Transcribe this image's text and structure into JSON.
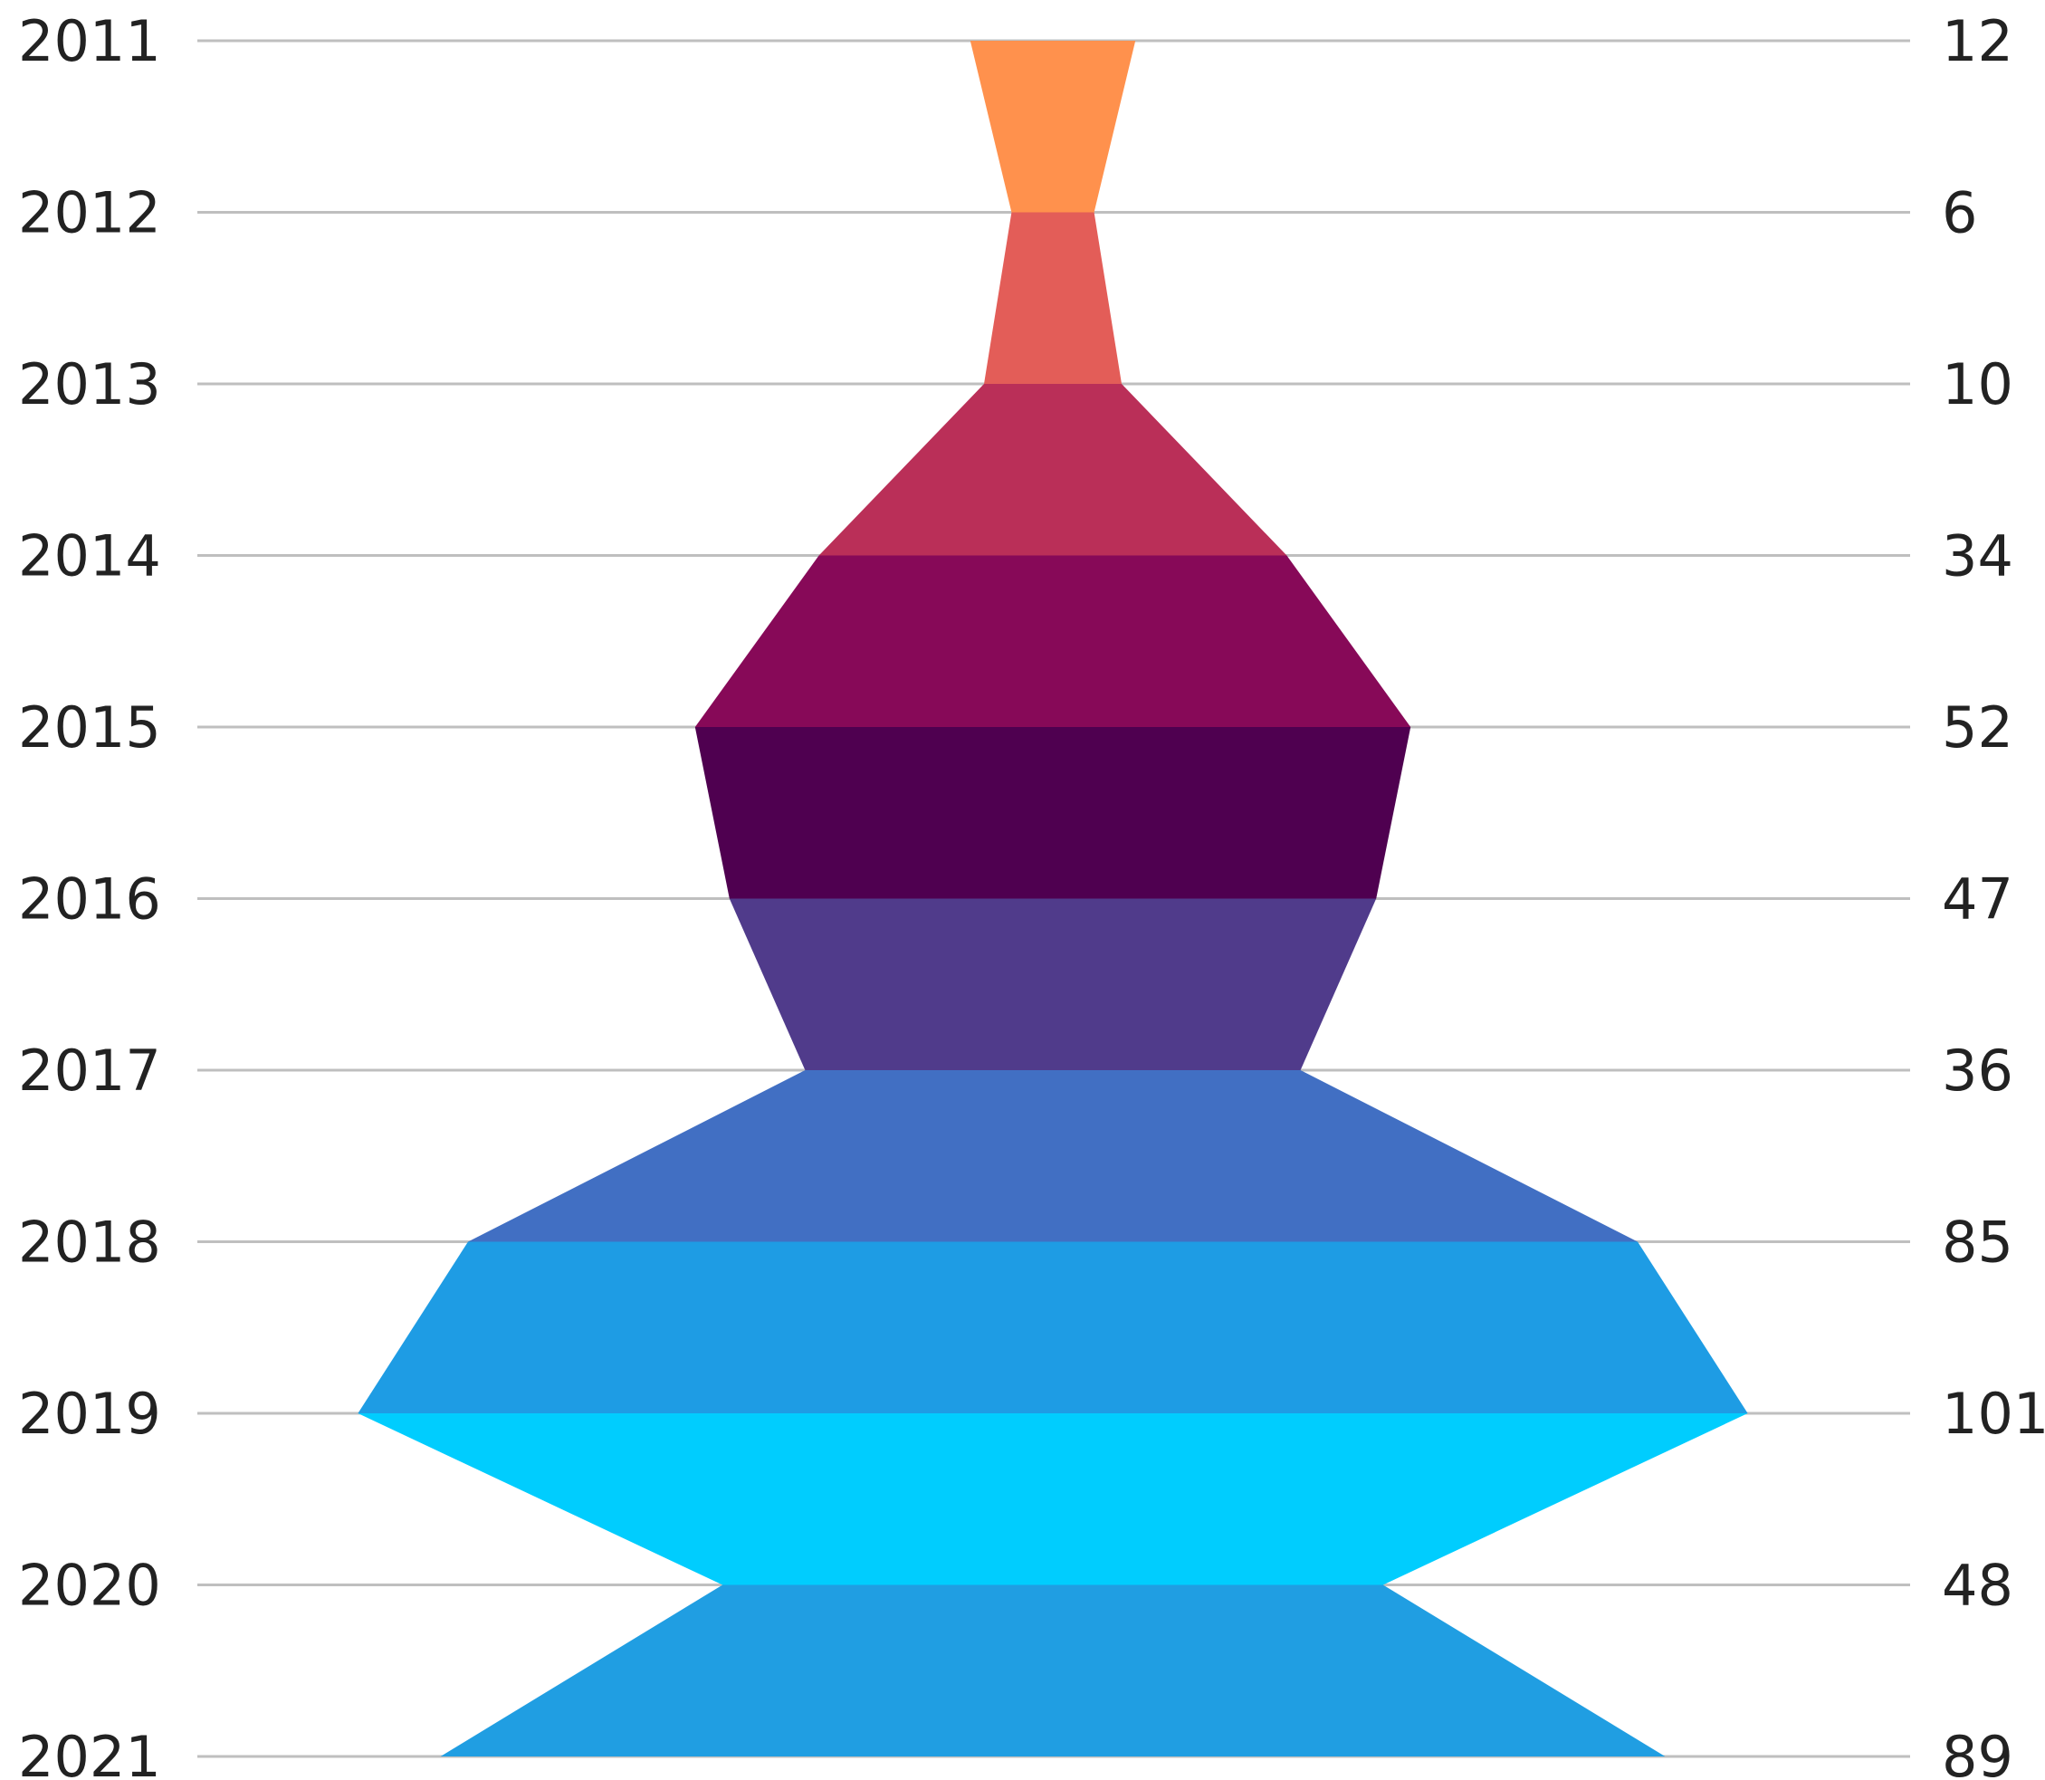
{
  "chart_data": {
    "type": "area",
    "title": "",
    "xlabel": "",
    "ylabel": "",
    "grid": true,
    "orientation": "vertical-symmetric",
    "categories": [
      "2011",
      "2012",
      "2013",
      "2014",
      "2015",
      "2016",
      "2017",
      "2018",
      "2019",
      "2020",
      "2021"
    ],
    "values": [
      12,
      6,
      10,
      34,
      52,
      47,
      36,
      85,
      101,
      48,
      89
    ],
    "value_labels": [
      "12",
      "6",
      "10",
      "34",
      "52",
      "47",
      "36",
      "85",
      "101",
      "48",
      "89"
    ],
    "segment_colors": [
      "#FF914D",
      "#E35D58",
      "#BA2F58",
      "#870958",
      "#4F0050",
      "#503B8B",
      "#416FC3",
      "#1E9CE4",
      "#00CDFE",
      "#209EE2"
    ]
  }
}
